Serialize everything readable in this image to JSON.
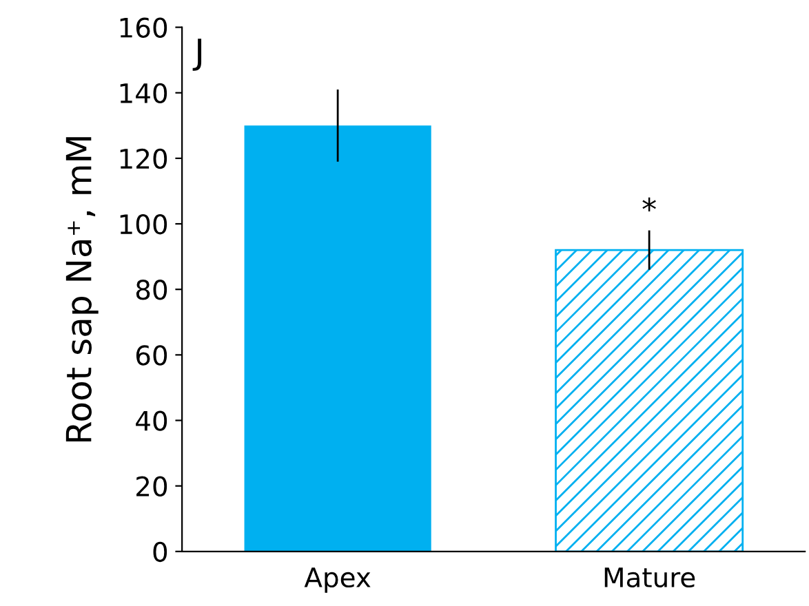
{
  "chart_data": {
    "type": "bar",
    "categories": [
      "Apex",
      "Mature"
    ],
    "values": [
      130,
      92
    ],
    "errors": [
      11,
      6
    ],
    "colors": [
      "#00b0f0",
      "#00b0f0"
    ],
    "ylabel": "Root sap Na⁺, mM",
    "ylim": [
      0,
      160
    ],
    "yticks": [
      0,
      20,
      40,
      60,
      80,
      100,
      120,
      140,
      160
    ],
    "grid": false,
    "legend": false,
    "annotations": [
      "J",
      {
        "text": "*",
        "x": "Mature",
        "y": 98
      }
    ]
  }
}
